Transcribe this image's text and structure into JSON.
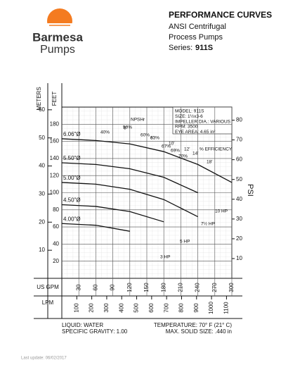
{
  "header": {
    "brand": "Barmesa",
    "brand_sub": "Pumps",
    "title": "PERFORMANCE CURVES",
    "line1": "ANSI Centrifugal",
    "line2": "Process Pumps",
    "series_label": "Series:",
    "series_value": "911S"
  },
  "chart_data": {
    "type": "line",
    "y_label": "FEET",
    "y_meters_label": "METERS",
    "y2_label": "PSI",
    "x_label": "US GPM",
    "x2_label": "LPM",
    "x": [
      0,
      60,
      120,
      180,
      240,
      300
    ],
    "series": [
      {
        "name": "6.06\"Ø",
        "color": "#111111",
        "values": [
          163,
          161,
          157,
          148,
          133,
          112
        ]
      },
      {
        "name": "5.50\"Ø",
        "color": "#111111",
        "values": [
          135,
          133,
          128,
          118,
          100,
          null
        ]
      },
      {
        "name": "5.00\"Ø",
        "color": "#111111",
        "values": [
          112,
          110,
          104,
          92,
          72,
          null
        ]
      },
      {
        "name": "4.50\"Ø",
        "color": "#111111",
        "values": [
          86,
          84,
          78,
          66,
          null,
          null
        ]
      },
      {
        "name": "4.00\"Ø",
        "color": "#111111",
        "values": [
          64,
          62,
          55,
          null,
          null,
          null
        ]
      }
    ],
    "xlim": [
      0,
      300
    ],
    "xticks": [
      30,
      60,
      90,
      120,
      150,
      180,
      210,
      240,
      270,
      300
    ],
    "ylim": [
      0,
      200
    ],
    "yticks": [
      20,
      40,
      60,
      80,
      100,
      120,
      140,
      160,
      180
    ],
    "y_meters_lim": [
      0,
      60.96
    ],
    "y_meters_ticks": [
      10,
      20,
      30,
      40,
      50,
      60
    ],
    "y2lim": [
      0,
      86.6
    ],
    "y2ticks": [
      10,
      20,
      30,
      40,
      50,
      60,
      70,
      80
    ],
    "x2lim": [
      0,
      1135.6
    ],
    "x2ticks": [
      100,
      200,
      300,
      400,
      500,
      600,
      700,
      800,
      900,
      1000,
      1100
    ],
    "grid": true,
    "info": [
      "MODEL: 911S",
      "SIZE: 1½x3-6",
      "IMPELLER DIA.: VARIOUS",
      "RPM: 3500",
      "EYE AREA: 4.65 in²"
    ],
    "annotations": [
      "NPSHr",
      "% EFFICIENCY",
      "40%",
      "50%",
      "60%",
      "63%",
      "67%",
      "69%",
      "70%",
      "3 HP",
      "5 HP",
      "7½ HP",
      "10 HP",
      "6'",
      "8'",
      "10'",
      "12'",
      "14'",
      "18'"
    ]
  },
  "footer": {
    "liquid": "LIQUID: WATER",
    "gravity": "SPECIFIC GRAVITY: 1.00",
    "temperature": "TEMPERATURE: 70° F (21° C)",
    "solid": "MAX. SOLID SIZE: .440 in",
    "update": "Last update: 06/02/2017"
  }
}
